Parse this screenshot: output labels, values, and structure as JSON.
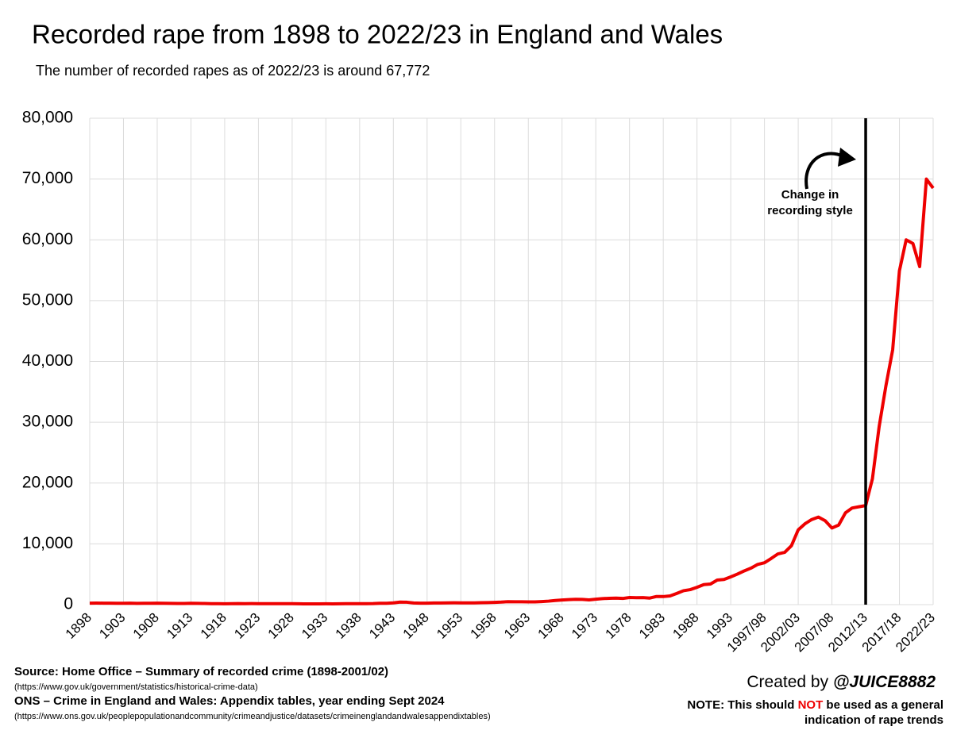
{
  "chart_data": {
    "type": "line",
    "title": "Recorded rape from 1898 to 2022/23 in England and Wales",
    "subtitle": "The number of recorded rapes as of 2022/23 is around 67,772",
    "categories": [
      "1898",
      null,
      null,
      null,
      null,
      "1903",
      null,
      null,
      null,
      null,
      "1908",
      null,
      null,
      null,
      null,
      "1913",
      null,
      null,
      null,
      null,
      "1918",
      null,
      null,
      null,
      null,
      "1923",
      null,
      null,
      null,
      null,
      "1928",
      null,
      null,
      null,
      null,
      "1933",
      null,
      null,
      null,
      null,
      "1938",
      null,
      null,
      null,
      null,
      "1943",
      null,
      null,
      null,
      null,
      "1948",
      null,
      null,
      null,
      null,
      "1953",
      null,
      null,
      null,
      null,
      "1958",
      null,
      null,
      null,
      null,
      "1963",
      null,
      null,
      null,
      null,
      "1968",
      null,
      null,
      null,
      null,
      "1973",
      null,
      null,
      null,
      null,
      "1978",
      null,
      null,
      null,
      null,
      "1983",
      null,
      null,
      null,
      null,
      "1988",
      null,
      null,
      null,
      null,
      "1993",
      null,
      null,
      null,
      null,
      "1997/98",
      null,
      null,
      null,
      null,
      "2002/03",
      null,
      null,
      null,
      null,
      "2007/08",
      null,
      null,
      null,
      null,
      "2012/13",
      null,
      null,
      null,
      null,
      "2017/18",
      null,
      null,
      null,
      null,
      "2022/23"
    ],
    "series": [
      {
        "color": "#ee0000",
        "values": [
          250,
          260,
          250,
          240,
          230,
          220,
          240,
          210,
          230,
          220,
          240,
          220,
          210,
          190,
          200,
          220,
          210,
          200,
          170,
          160,
          140,
          160,
          180,
          170,
          180,
          170,
          170,
          170,
          160,
          170,
          160,
          140,
          130,
          130,
          130,
          140,
          130,
          150,
          170,
          160,
          170,
          170,
          180,
          220,
          230,
          300,
          420,
          400,
          280,
          250,
          250,
          270,
          280,
          300,
          310,
          300,
          290,
          300,
          320,
          350,
          380,
          420,
          490,
          480,
          470,
          450,
          450,
          510,
          580,
          680,
          760,
          830,
          880,
          860,
          790,
          900,
          990,
          1050,
          1070,
          1020,
          1180,
          1150,
          1160,
          1080,
          1340,
          1330,
          1430,
          1840,
          2290,
          2470,
          2860,
          3300,
          3390,
          4050,
          4140,
          4570,
          5030,
          5550,
          6010,
          6620,
          6900,
          7600,
          8350,
          8600,
          9700,
          12300,
          13300,
          14000,
          14400,
          13800,
          12600,
          13100,
          15100,
          15900,
          16100,
          16300,
          20700,
          29300,
          36000,
          41900,
          54900,
          60000,
          59400,
          55600,
          70000,
          68500
        ]
      }
    ],
    "ylim": [
      0,
      80000
    ],
    "yticks": [
      0,
      {
        "value": 10000,
        "label": "10,000"
      },
      {
        "value": 20000,
        "label": "20,000"
      },
      {
        "value": 30000,
        "label": "30,000"
      },
      {
        "value": 40000,
        "label": "40,000"
      },
      {
        "value": 50000,
        "label": "50,000"
      },
      {
        "value": 60000,
        "label": "60,000"
      },
      {
        "value": 70000,
        "label": "70,000"
      },
      {
        "value": 80000,
        "label": "80,000"
      }
    ],
    "grid": true,
    "annotation": {
      "lines": [
        "Change in",
        "recording style"
      ],
      "x": "2012/13"
    }
  },
  "footer": {
    "sources": [
      {
        "title": "Source: Home Office – Summary of recorded crime (1898-2001/02)",
        "url": "(https://www.gov.uk/government/statistics/historical-crime-data)"
      },
      {
        "title": "ONS – Crime in England and Wales: Appendix tables, year ending Sept 2024",
        "url": "(https://www.ons.gov.uk/peoplepopulationandcommunity/crimeandjustice/datasets/crimeinenglandandwalesappendixtables)"
      }
    ],
    "credit": {
      "prefix": "Created by",
      "handle": "@JUICE8882"
    },
    "note": {
      "before": "NOTE: This should",
      "emphasis": "NOT",
      "after": "be used as a general",
      "line2": "indication of rape trends"
    }
  }
}
